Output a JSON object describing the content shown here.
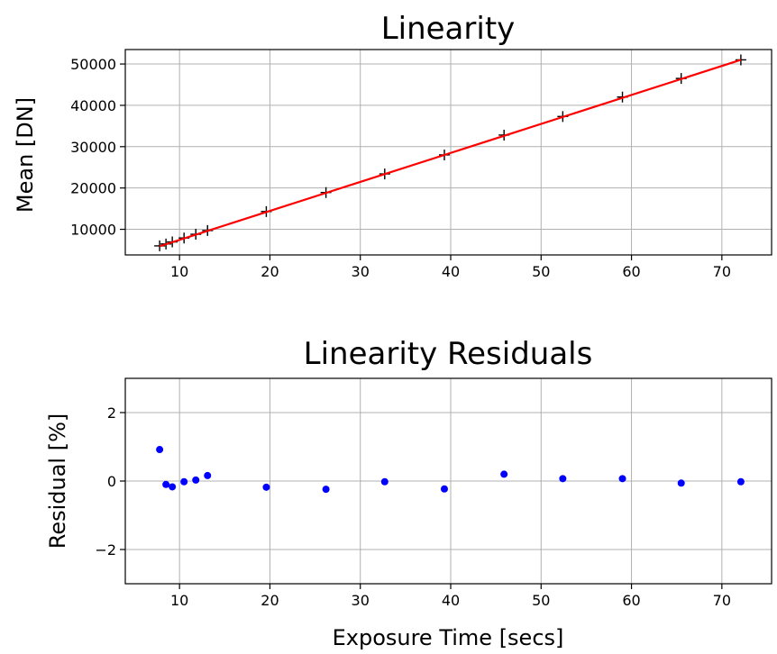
{
  "chart_data": [
    {
      "type": "scatter",
      "title": "Linearity",
      "xlabel": "",
      "ylabel": "Mean [DN]",
      "xlim": [
        4.0,
        75.5
      ],
      "ylim": [
        3800,
        53500
      ],
      "xticks": [
        10,
        20,
        30,
        40,
        50,
        60,
        70
      ],
      "yticks": [
        10000,
        20000,
        30000,
        40000,
        50000
      ],
      "grid": true,
      "series": [
        {
          "marker": "+",
          "color": "#000000",
          "x": [
            7.8,
            8.5,
            9.2,
            10.5,
            11.8,
            13.1,
            19.6,
            26.2,
            32.7,
            39.3,
            45.9,
            52.4,
            59.0,
            65.5,
            72.1
          ],
          "y": [
            6000,
            6450,
            6950,
            7900,
            8800,
            9700,
            14300,
            18900,
            23400,
            28000,
            32800,
            37300,
            42000,
            46500,
            51000
          ]
        },
        {
          "type": "line",
          "color": "#ff0000",
          "x": [
            7.8,
            72.1
          ],
          "y": [
            5900,
            51000
          ]
        }
      ]
    },
    {
      "type": "scatter",
      "title": "Linearity Residuals",
      "xlabel": "Exposure Time [secs]",
      "ylabel": "Residual [%]",
      "xlim": [
        4.0,
        75.5
      ],
      "ylim": [
        -3,
        3
      ],
      "xticks": [
        10,
        20,
        30,
        40,
        50,
        60,
        70
      ],
      "yticks": [
        -2,
        0,
        2
      ],
      "ytick_labels": [
        "−2",
        "0",
        "2"
      ],
      "grid": true,
      "series": [
        {
          "marker": "o",
          "color": "#0000ff",
          "x": [
            7.8,
            8.5,
            9.2,
            10.5,
            11.8,
            13.1,
            19.6,
            26.2,
            32.7,
            39.3,
            45.9,
            52.4,
            59.0,
            65.5,
            72.1
          ],
          "y": [
            0.92,
            -0.1,
            -0.17,
            -0.02,
            0.03,
            0.16,
            -0.18,
            -0.24,
            -0.02,
            -0.23,
            0.2,
            0.07,
            0.07,
            -0.06,
            -0.02
          ]
        }
      ]
    }
  ]
}
